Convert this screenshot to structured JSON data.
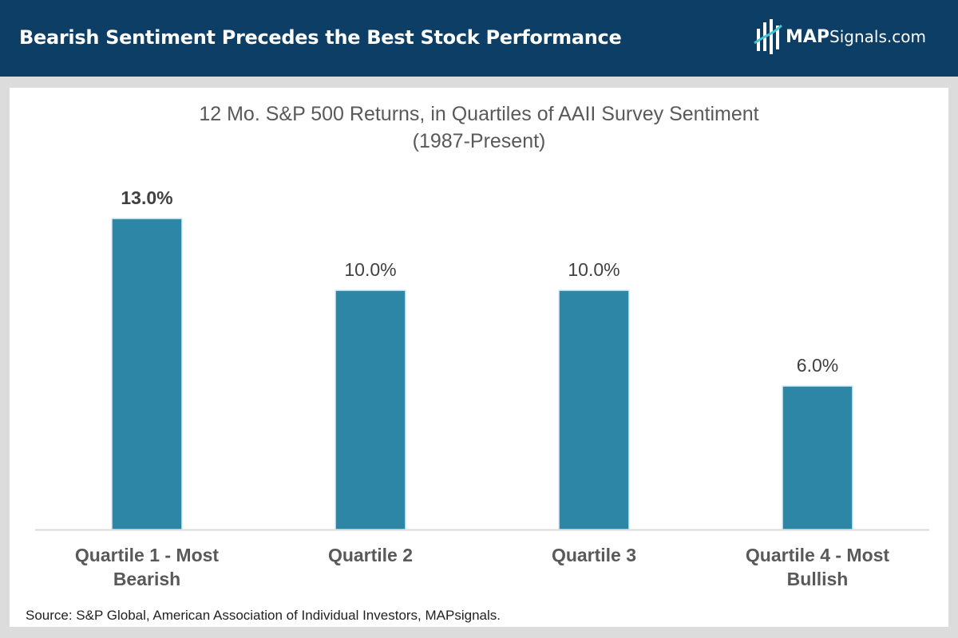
{
  "header": {
    "title": "Bearish Sentiment Precedes the Best Stock Performance",
    "logo_brand": "MAP",
    "logo_suffix": "Signals.com",
    "logo_icon": "mapsignals-logo-icon"
  },
  "colors": {
    "header_bg": "#0c3e66",
    "bar": "#2e86a6",
    "axis": "#d9d9d9",
    "label": "#595959"
  },
  "chart_data": {
    "type": "bar",
    "title": "12 Mo. S&P 500 Returns, in Quartiles of AAII Survey Sentiment",
    "subtitle": "(1987-Present)",
    "categories": [
      [
        "Quartile 1 - Most",
        "Bearish"
      ],
      [
        "Quartile 2"
      ],
      [
        "Quartile 3"
      ],
      [
        "Quartile 4 - Most",
        "Bullish"
      ]
    ],
    "values": [
      13.0,
      10.0,
      10.0,
      6.0
    ],
    "data_labels": [
      "13.0%",
      "10.0%",
      "10.0%",
      "6.0%"
    ],
    "highlight_index": 0,
    "xlabel": "",
    "ylabel": "",
    "ylim": [
      0,
      14
    ],
    "grid": false,
    "legend": "none"
  },
  "source": "Source: S&P Global, American Association of Individual Investors, MAPsignals."
}
